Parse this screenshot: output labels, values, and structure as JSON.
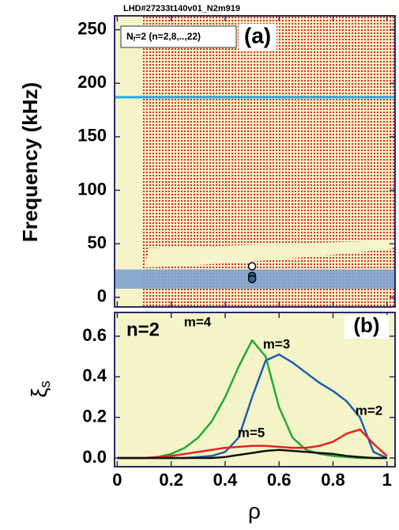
{
  "chart_data": [
    {
      "type": "scatter",
      "title": "LHD#27233t140v01_N2m919",
      "panel_label": "(a)",
      "legend_text": [
        "N",
        "f",
        "=2 (n=2,8,..,22)"
      ],
      "ylabel": "Frequency (kHz)",
      "xlim": [
        -0.01,
        1.03
      ],
      "ylim": [
        -9,
        263
      ],
      "yticks": [
        0,
        50,
        100,
        150,
        200,
        250
      ],
      "line_frequency": 187,
      "band": [
        8,
        26
      ],
      "colors": {
        "line": "#1ab0e8",
        "band": "#7fa3cf",
        "continuum": "#e01515",
        "background": "#f4f4c8"
      },
      "series": [
        {
          "color": "#1f6f9a",
          "x": [
            0.5,
            0.5,
            0.5
          ],
          "values": [
            29,
            20,
            17
          ]
        }
      ]
    },
    {
      "type": "line",
      "panel_label": "(b)",
      "annotation": "n=2",
      "xlabel": "ρ",
      "ylabel": [
        "ξ",
        "s"
      ],
      "xlim": [
        -0.01,
        1.03
      ],
      "ylim": [
        -0.043,
        0.717
      ],
      "xticks": [
        0,
        0.2,
        0.4,
        0.6,
        0.8,
        1
      ],
      "yticks": [
        {
          "value": 0,
          "label": "0.0"
        },
        0.2,
        0.4,
        0.6
      ],
      "x": [
        0,
        0.05,
        0.1,
        0.15,
        0.2,
        0.25,
        0.3,
        0.35,
        0.4,
        0.45,
        0.5,
        0.55,
        0.6,
        0.65,
        0.7,
        0.75,
        0.8,
        0.85,
        0.9,
        0.95,
        1
      ],
      "series": [
        {
          "name": "m=4",
          "color": "#22aa33",
          "values": [
            0,
            0,
            0,
            0.005,
            0.02,
            0.05,
            0.1,
            0.18,
            0.3,
            0.45,
            0.58,
            0.5,
            0.25,
            0.1,
            0.04,
            0.02,
            0.01,
            0.005,
            0,
            0,
            0
          ]
        },
        {
          "name": "m=3",
          "color": "#1f5fae",
          "values": [
            0,
            0,
            0,
            0,
            0,
            0,
            0.005,
            0.01,
            0.03,
            0.1,
            0.3,
            0.48,
            0.51,
            0.47,
            0.42,
            0.37,
            0.33,
            0.28,
            0.2,
            0.03,
            0
          ]
        },
        {
          "name": "m=2",
          "color": "#e82020",
          "values": [
            0,
            0,
            0,
            0.005,
            0.01,
            0.02,
            0.03,
            0.04,
            0.05,
            0.055,
            0.06,
            0.06,
            0.055,
            0.05,
            0.05,
            0.06,
            0.08,
            0.12,
            0.14,
            0.07,
            0.01
          ]
        },
        {
          "name": "m=5",
          "color": "#111111",
          "values": [
            0,
            0,
            0,
            0,
            0,
            0,
            0,
            0,
            0.005,
            0.015,
            0.025,
            0.035,
            0.04,
            0.035,
            0.03,
            0.025,
            0.02,
            0.01,
            0.005,
            0,
            0
          ]
        }
      ]
    }
  ]
}
